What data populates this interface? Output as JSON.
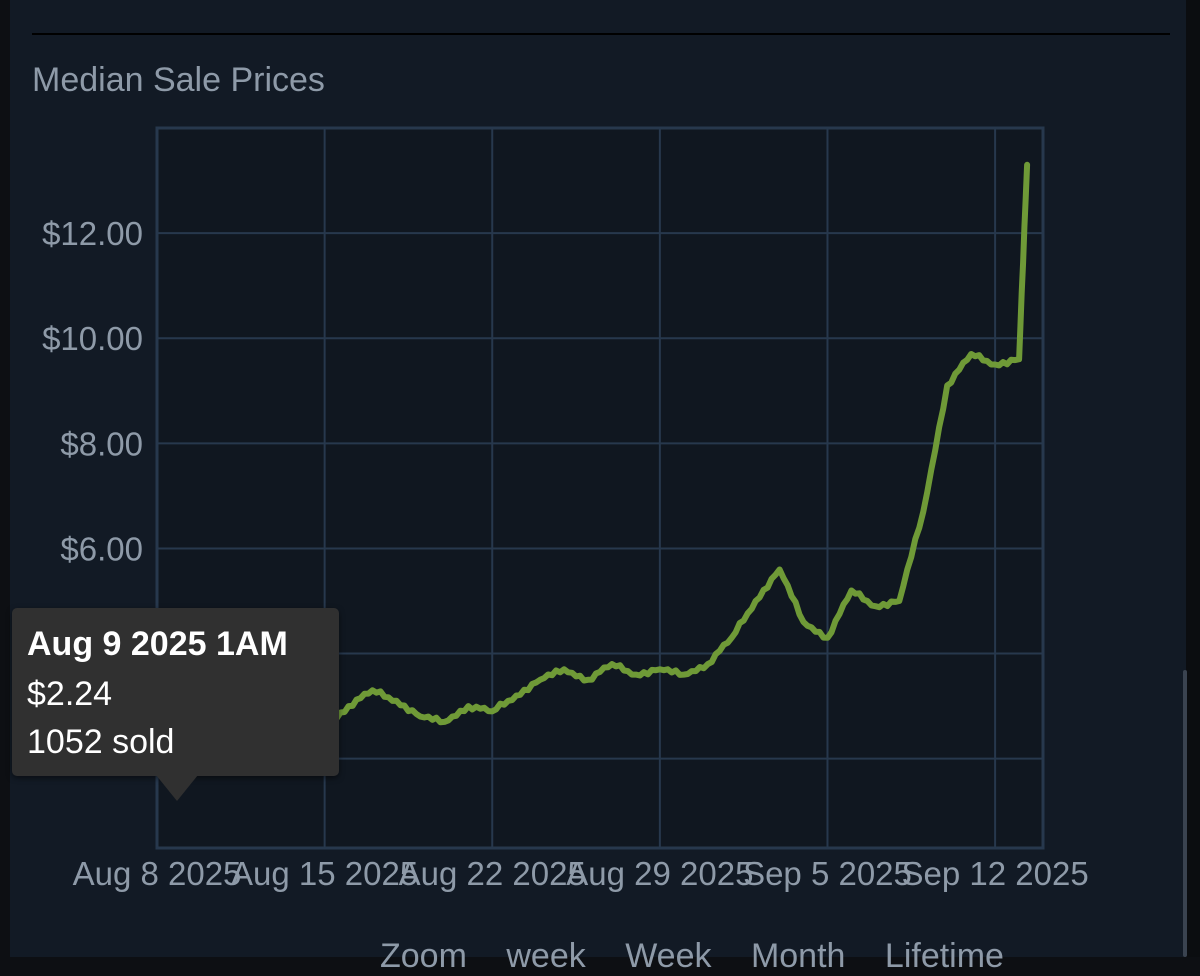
{
  "chart_data": {
    "type": "line",
    "title": "Median Sale Prices",
    "x_tick_labels": [
      "Aug 8 2025",
      "Aug 15 2025",
      "Aug 22 2025",
      "Aug 29 2025",
      "Sep 5 2025",
      "Sep 12 2025"
    ],
    "x_ticks": [
      "2025-08-08",
      "2025-08-15",
      "2025-08-22",
      "2025-08-29",
      "2025-09-05",
      "2025-09-12"
    ],
    "xlim": [
      "2025-08-08",
      "2025-09-14"
    ],
    "y_tick_labels": [
      "$6.00",
      "$8.00",
      "$10.00",
      "$12.00"
    ],
    "y_ticks": [
      2,
      4,
      6,
      8,
      10,
      12
    ],
    "ylim": [
      0.3,
      14.0
    ],
    "grid": true,
    "line_color": "#6f9a37",
    "series": [
      {
        "x": [
          "2025-08-09",
          "2025-08-10",
          "2025-08-11",
          "2025-08-12",
          "2025-08-13",
          "2025-08-14",
          "2025-08-15",
          "2025-08-16",
          "2025-08-17",
          "2025-08-18",
          "2025-08-19",
          "2025-08-20",
          "2025-08-21",
          "2025-08-22",
          "2025-08-23",
          "2025-08-24",
          "2025-08-25",
          "2025-08-26",
          "2025-08-27",
          "2025-08-28",
          "2025-08-29",
          "2025-08-30",
          "2025-08-31",
          "2025-09-01",
          "2025-09-02",
          "2025-09-03",
          "2025-09-04",
          "2025-09-05",
          "2025-09-06",
          "2025-09-07",
          "2025-09-08",
          "2025-09-09",
          "2025-09-10",
          "2025-09-11",
          "2025-09-12",
          "2025-09-13",
          "2025-09-13"
        ],
        "y": [
          2.24,
          2.24,
          2.25,
          2.3,
          2.5,
          2.4,
          2.6,
          3.0,
          3.3,
          3.1,
          2.8,
          2.7,
          3.0,
          2.9,
          3.2,
          3.5,
          3.7,
          3.5,
          3.8,
          3.6,
          3.7,
          3.6,
          3.8,
          4.3,
          5.0,
          5.6,
          4.6,
          4.3,
          5.2,
          4.9,
          5.0,
          6.7,
          9.1,
          9.7,
          9.5,
          9.6,
          13.3
        ]
      }
    ]
  },
  "tooltip": {
    "date": "Aug 9 2025 1AM",
    "price": "$2.24",
    "sold": "1052 sold"
  },
  "below_chart": {
    "partial_text": [
      "Zoom",
      "week",
      "Week",
      "Month",
      "Lifetime"
    ]
  }
}
